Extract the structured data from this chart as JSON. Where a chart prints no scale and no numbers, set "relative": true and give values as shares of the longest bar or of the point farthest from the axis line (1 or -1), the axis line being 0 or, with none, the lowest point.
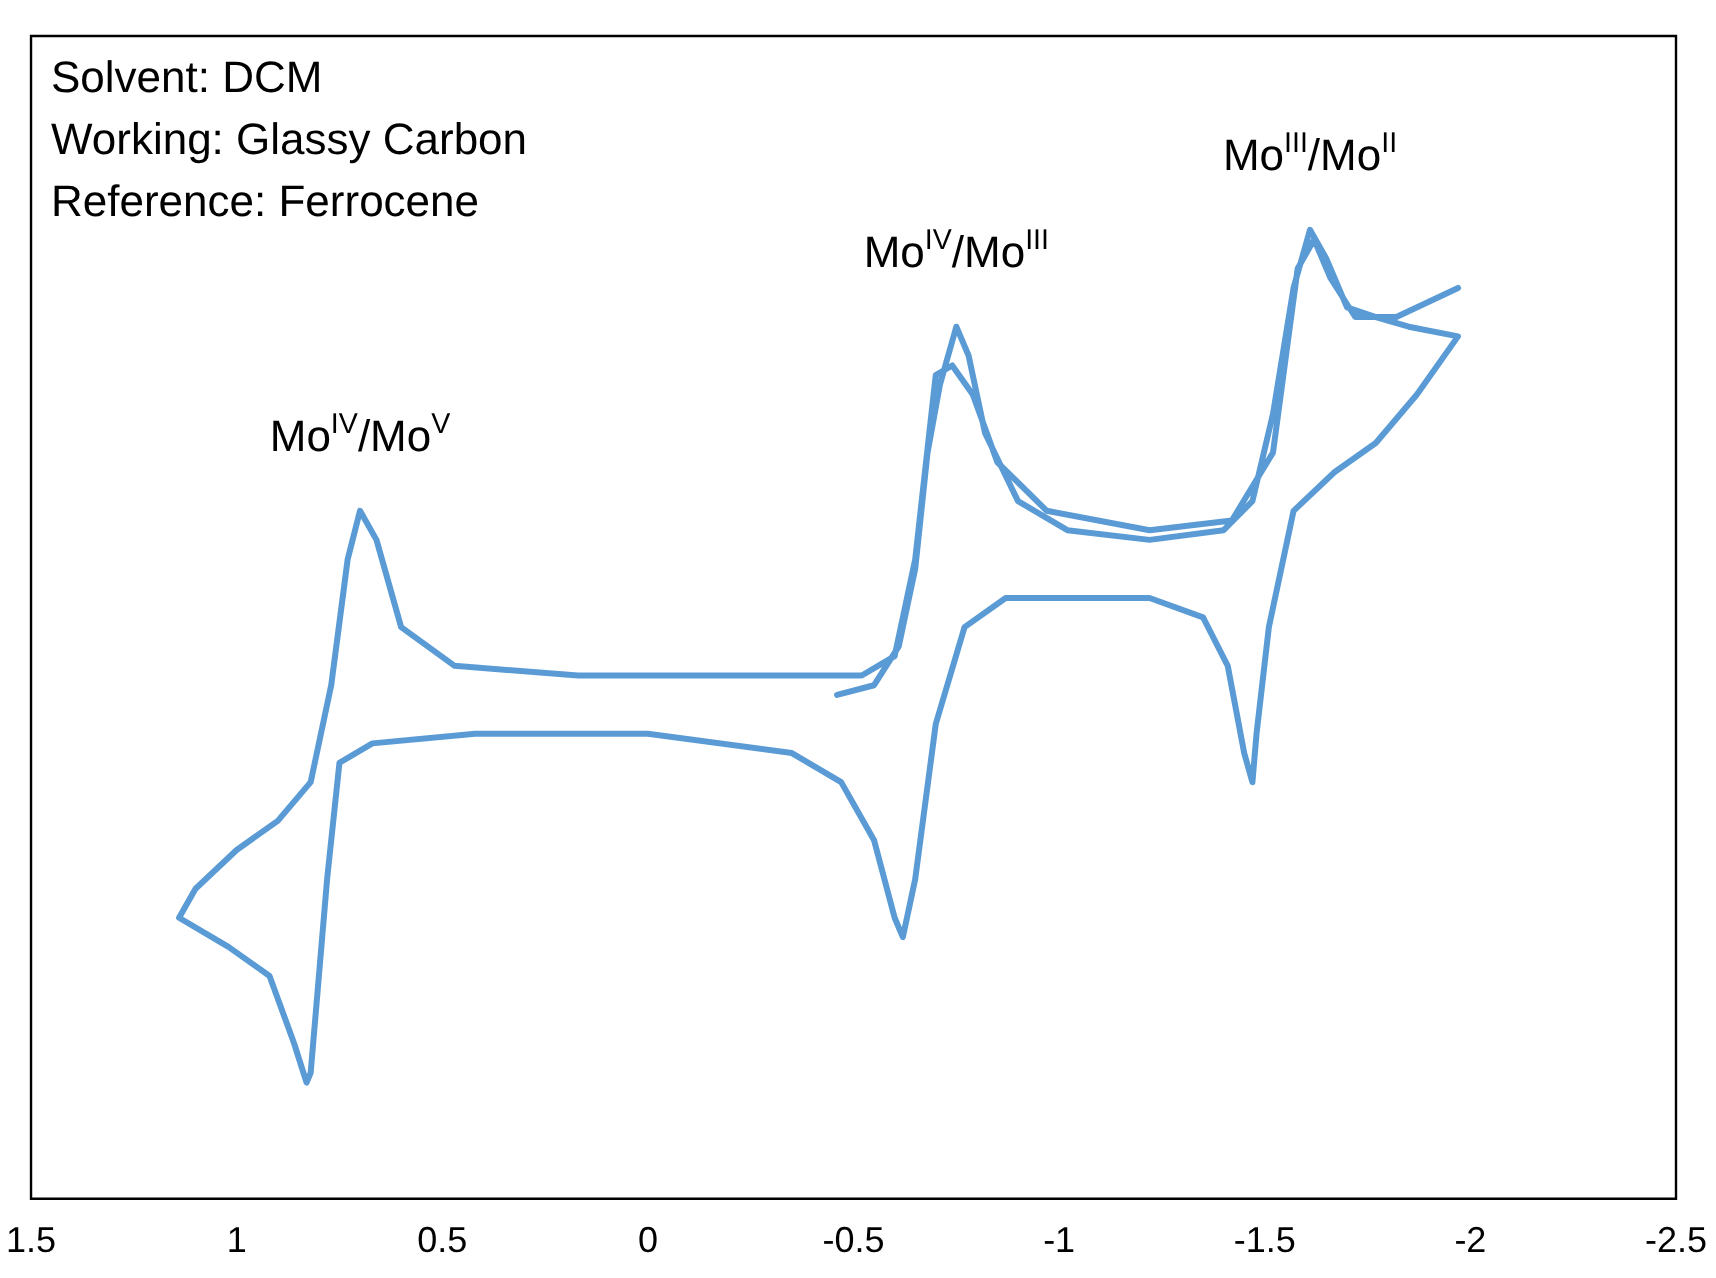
{
  "chart_data": {
    "type": "line",
    "relative": true,
    "xlim": [
      1.5,
      -2.5
    ],
    "xticks": [
      1.5,
      1,
      0.5,
      0,
      -0.5,
      -1,
      -1.5,
      -2,
      -2.5
    ],
    "tick_labels": "x",
    "grid": false,
    "legend": false,
    "marker": "none",
    "line_style": "solid",
    "series": [
      {
        "color": "#5b9bd5",
        "x": [
          -0.46,
          -0.55,
          -0.61,
          -0.65,
          -0.68,
          -0.71,
          -0.75,
          -0.78,
          -0.82,
          -0.9,
          -1.02,
          -1.22,
          -1.4,
          -1.47,
          -1.52,
          -1.57,
          -1.61,
          -1.65,
          -1.7,
          -1.77,
          -1.85,
          -1.97,
          -1.87,
          -1.77,
          -1.67,
          -1.57,
          -1.51,
          -1.48,
          -1.47,
          -1.45,
          -1.41,
          -1.35,
          -1.22,
          -1.02,
          -0.87,
          -0.77,
          -0.7,
          -0.65,
          -0.62,
          -0.6,
          -0.55,
          -0.47,
          -0.35,
          0,
          0.42,
          0.67,
          0.75,
          0.78,
          0.82,
          0.83,
          0.86,
          0.92,
          1.02,
          1.14,
          1.1,
          1,
          0.9,
          0.82,
          0.77,
          0.73,
          0.7,
          0.66,
          0.6,
          0.47,
          0.17,
          -0.32,
          -0.52,
          -0.6,
          -0.65,
          -0.7,
          -0.74,
          -0.79,
          -0.85,
          -0.97,
          -1.22,
          -1.42,
          -1.52,
          -1.58,
          -1.62,
          -1.66,
          -1.72,
          -1.82,
          -1.97
        ],
        "values": [
          0.52,
          0.53,
          0.57,
          0.65,
          0.77,
          0.84,
          0.9,
          0.87,
          0.79,
          0.72,
          0.69,
          0.68,
          0.69,
          0.72,
          0.81,
          0.94,
          1,
          0.97,
          0.92,
          0.91,
          0.9,
          0.89,
          0.83,
          0.78,
          0.75,
          0.71,
          0.59,
          0.48,
          0.43,
          0.46,
          0.55,
          0.6,
          0.62,
          0.62,
          0.62,
          0.59,
          0.49,
          0.33,
          0.27,
          0.29,
          0.37,
          0.43,
          0.46,
          0.48,
          0.48,
          0.47,
          0.45,
          0.33,
          0.13,
          0.12,
          0.16,
          0.23,
          0.26,
          0.29,
          0.32,
          0.36,
          0.39,
          0.43,
          0.53,
          0.66,
          0.71,
          0.68,
          0.59,
          0.55,
          0.54,
          0.54,
          0.54,
          0.56,
          0.66,
          0.85,
          0.86,
          0.83,
          0.76,
          0.71,
          0.69,
          0.7,
          0.77,
          0.96,
          0.99,
          0.95,
          0.91,
          0.91,
          0.94
        ]
      }
    ],
    "annotations": [
      {
        "text": "Mo$^{IV}$/Mo$^{V}$",
        "x": 0.7,
        "y": 0.71
      },
      {
        "text": "Mo$^{IV}$/Mo$^{III}$",
        "x": -0.75,
        "y": 0.9
      },
      {
        "text": "Mo$^{III}$/Mo$^{II}$",
        "x": -1.61,
        "y": 1
      },
      "Solvent: DCM",
      "Working: Glassy Carbon",
      "Reference: Ferrocene"
    ]
  }
}
